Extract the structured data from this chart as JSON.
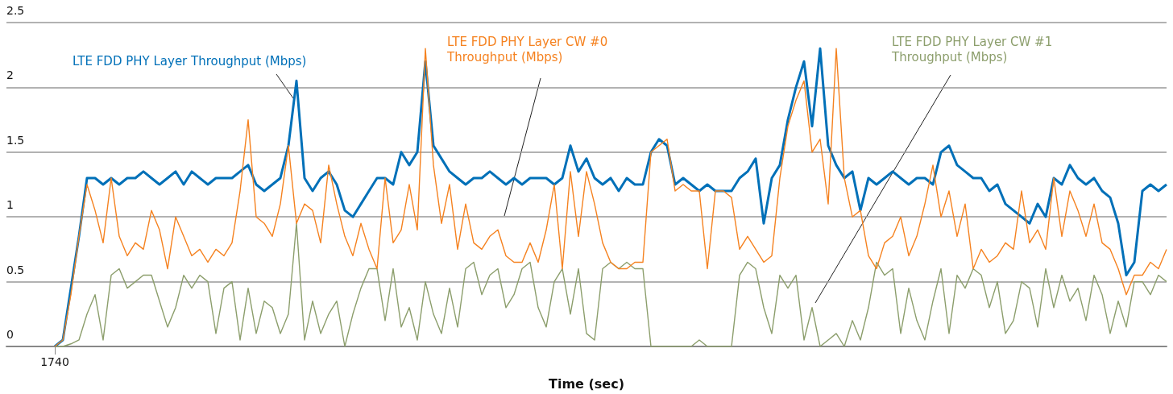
{
  "chart_data": {
    "type": "line",
    "xlabel": "Time (sec)",
    "categories": [
      null,
      null,
      null,
      null,
      null,
      null,
      "1740",
      null,
      null,
      null,
      null,
      null,
      null,
      null,
      null,
      null,
      null,
      null,
      null,
      null,
      null,
      null,
      null,
      null,
      null,
      null,
      null,
      null,
      null,
      null,
      null,
      null,
      null,
      null,
      null,
      null,
      null,
      null,
      null,
      null,
      null,
      null,
      null,
      null,
      null,
      null,
      null,
      null,
      null,
      null,
      null,
      null,
      null,
      null,
      null,
      null,
      null,
      null,
      null,
      null,
      null,
      null,
      null,
      null,
      null,
      null,
      null,
      null,
      null,
      null,
      null,
      null,
      null,
      null,
      null,
      null,
      null,
      null,
      null,
      null,
      null,
      null,
      null,
      null,
      null,
      null,
      null,
      null,
      null,
      null,
      null,
      null,
      null,
      null,
      null,
      null,
      null,
      null,
      null,
      null,
      null,
      null,
      null,
      null,
      null,
      null,
      null,
      null,
      null,
      null,
      null,
      null,
      null,
      null,
      null,
      null,
      null,
      null,
      null,
      null,
      null,
      null,
      null,
      null,
      null,
      null,
      null,
      null,
      null,
      null,
      null,
      null,
      null,
      null,
      null,
      null,
      null,
      null,
      null,
      null,
      null,
      null,
      null,
      null,
      null
    ],
    "ylim": [
      0,
      2.5
    ],
    "yticks": [
      0,
      0.5,
      1,
      1.5,
      2,
      2.5
    ],
    "grid": "y",
    "legend": false,
    "marker": "none",
    "line_style": "solid",
    "series": [
      {
        "name": "LTE FDD PHY Layer Throughput (Mbps)",
        "color": "#0070b8",
        "values": [
          null,
          null,
          null,
          null,
          null,
          null,
          0,
          0.05,
          0.45,
          0.85,
          1.3,
          1.3,
          1.25,
          1.3,
          1.25,
          1.3,
          1.3,
          1.35,
          1.3,
          1.25,
          1.3,
          1.35,
          1.25,
          1.35,
          1.3,
          1.25,
          1.3,
          1.3,
          1.3,
          1.35,
          1.4,
          1.25,
          1.2,
          1.25,
          1.3,
          1.55,
          2.05,
          1.3,
          1.2,
          1.3,
          1.35,
          1.25,
          1.05,
          1.0,
          1.1,
          1.2,
          1.3,
          1.3,
          1.25,
          1.5,
          1.4,
          1.5,
          2.2,
          1.55,
          1.45,
          1.35,
          1.3,
          1.25,
          1.3,
          1.3,
          1.35,
          1.3,
          1.25,
          1.3,
          1.25,
          1.3,
          1.3,
          1.3,
          1.25,
          1.3,
          1.55,
          1.35,
          1.45,
          1.3,
          1.25,
          1.3,
          1.2,
          1.3,
          1.25,
          1.25,
          1.5,
          1.6,
          1.55,
          1.25,
          1.3,
          1.25,
          1.2,
          1.25,
          1.2,
          1.2,
          1.2,
          1.3,
          1.35,
          1.45,
          0.95,
          1.3,
          1.4,
          1.75,
          2.0,
          2.2,
          1.7,
          2.3,
          1.55,
          1.4,
          1.3,
          1.35,
          1.05,
          1.3,
          1.25,
          1.3,
          1.35,
          1.3,
          1.25,
          1.3,
          1.3,
          1.25,
          1.5,
          1.55,
          1.4,
          1.35,
          1.3,
          1.3,
          1.2,
          1.25,
          1.1,
          1.05,
          1.0,
          0.95,
          1.1,
          1.0,
          1.3,
          1.25,
          1.4,
          1.3,
          1.25,
          1.3,
          1.2,
          1.15,
          0.95,
          0.55,
          0.65,
          1.2,
          1.25,
          1.2,
          1.25
        ]
      },
      {
        "name": "LTE FDD PHY Layer CW #1 Throughput (Mbps)",
        "color": "#8c9e6c",
        "values": [
          null,
          null,
          null,
          null,
          null,
          null,
          0,
          0,
          0.02,
          0.05,
          0.25,
          0.4,
          0.05,
          0.55,
          0.6,
          0.45,
          0.5,
          0.55,
          0.55,
          0.35,
          0.15,
          0.3,
          0.55,
          0.45,
          0.55,
          0.5,
          0.1,
          0.45,
          0.5,
          0.05,
          0.45,
          0.1,
          0.35,
          0.3,
          0.1,
          0.25,
          0.95,
          0.05,
          0.35,
          0.1,
          0.25,
          0.35,
          0.0,
          0.25,
          0.45,
          0.6,
          0.6,
          0.2,
          0.6,
          0.15,
          0.3,
          0.05,
          0.5,
          0.25,
          0.1,
          0.45,
          0.15,
          0.6,
          0.65,
          0.4,
          0.55,
          0.6,
          0.3,
          0.4,
          0.6,
          0.65,
          0.3,
          0.15,
          0.5,
          0.6,
          0.25,
          0.6,
          0.1,
          0.05,
          0.6,
          0.65,
          0.6,
          0.65,
          0.6,
          0.6,
          0.0,
          0.0,
          0.0,
          0.0,
          0.0,
          0.0,
          0.05,
          0.0,
          0.0,
          0.0,
          0.0,
          0.55,
          0.65,
          0.6,
          0.3,
          0.1,
          0.55,
          0.45,
          0.55,
          0.05,
          0.3,
          0.0,
          0.05,
          0.1,
          0.0,
          0.2,
          0.05,
          0.3,
          0.65,
          0.55,
          0.6,
          0.1,
          0.45,
          0.2,
          0.05,
          0.35,
          0.6,
          0.1,
          0.55,
          0.45,
          0.6,
          0.55,
          0.3,
          0.5,
          0.1,
          0.2,
          0.5,
          0.45,
          0.15,
          0.6,
          0.3,
          0.55,
          0.35,
          0.45,
          0.2,
          0.55,
          0.4,
          0.1,
          0.35,
          0.15,
          0.5,
          0.5,
          0.4,
          0.55,
          0.5
        ]
      },
      {
        "name": "LTE FDD PHY Layer CW #0 Throughput (Mbps)",
        "color": "#f58220",
        "values": [
          null,
          null,
          null,
          null,
          null,
          null,
          0,
          0.05,
          0.4,
          0.85,
          1.25,
          1.05,
          0.8,
          1.3,
          0.85,
          0.7,
          0.8,
          0.75,
          1.05,
          0.9,
          0.6,
          1.0,
          0.85,
          0.7,
          0.75,
          0.65,
          0.75,
          0.7,
          0.8,
          1.2,
          1.75,
          1.0,
          0.95,
          0.85,
          1.1,
          1.55,
          0.95,
          1.1,
          1.05,
          0.8,
          1.4,
          1.1,
          0.85,
          0.7,
          0.95,
          0.75,
          0.6,
          1.3,
          0.8,
          0.9,
          1.25,
          0.9,
          2.3,
          1.4,
          0.95,
          1.25,
          0.75,
          1.1,
          0.8,
          0.75,
          0.85,
          0.9,
          0.7,
          0.65,
          0.65,
          0.8,
          0.65,
          0.9,
          1.25,
          0.6,
          1.35,
          0.85,
          1.35,
          1.1,
          0.8,
          0.65,
          0.6,
          0.6,
          0.65,
          0.65,
          1.5,
          1.55,
          1.6,
          1.2,
          1.25,
          1.2,
          1.2,
          0.6,
          1.2,
          1.2,
          1.15,
          0.75,
          0.85,
          0.75,
          0.65,
          0.7,
          1.3,
          1.7,
          1.9,
          2.05,
          1.5,
          1.6,
          1.1,
          2.3,
          1.3,
          1.0,
          1.05,
          0.7,
          0.6,
          0.8,
          0.85,
          1.0,
          0.7,
          0.85,
          1.1,
          1.4,
          1.0,
          1.2,
          0.85,
          1.1,
          0.6,
          0.75,
          0.65,
          0.7,
          0.8,
          0.75,
          1.2,
          0.8,
          0.9,
          0.75,
          1.3,
          0.85,
          1.2,
          1.05,
          0.85,
          1.1,
          0.8,
          0.75,
          0.6,
          0.4,
          0.55,
          0.55,
          0.65,
          0.6,
          0.75
        ]
      }
    ]
  }
}
